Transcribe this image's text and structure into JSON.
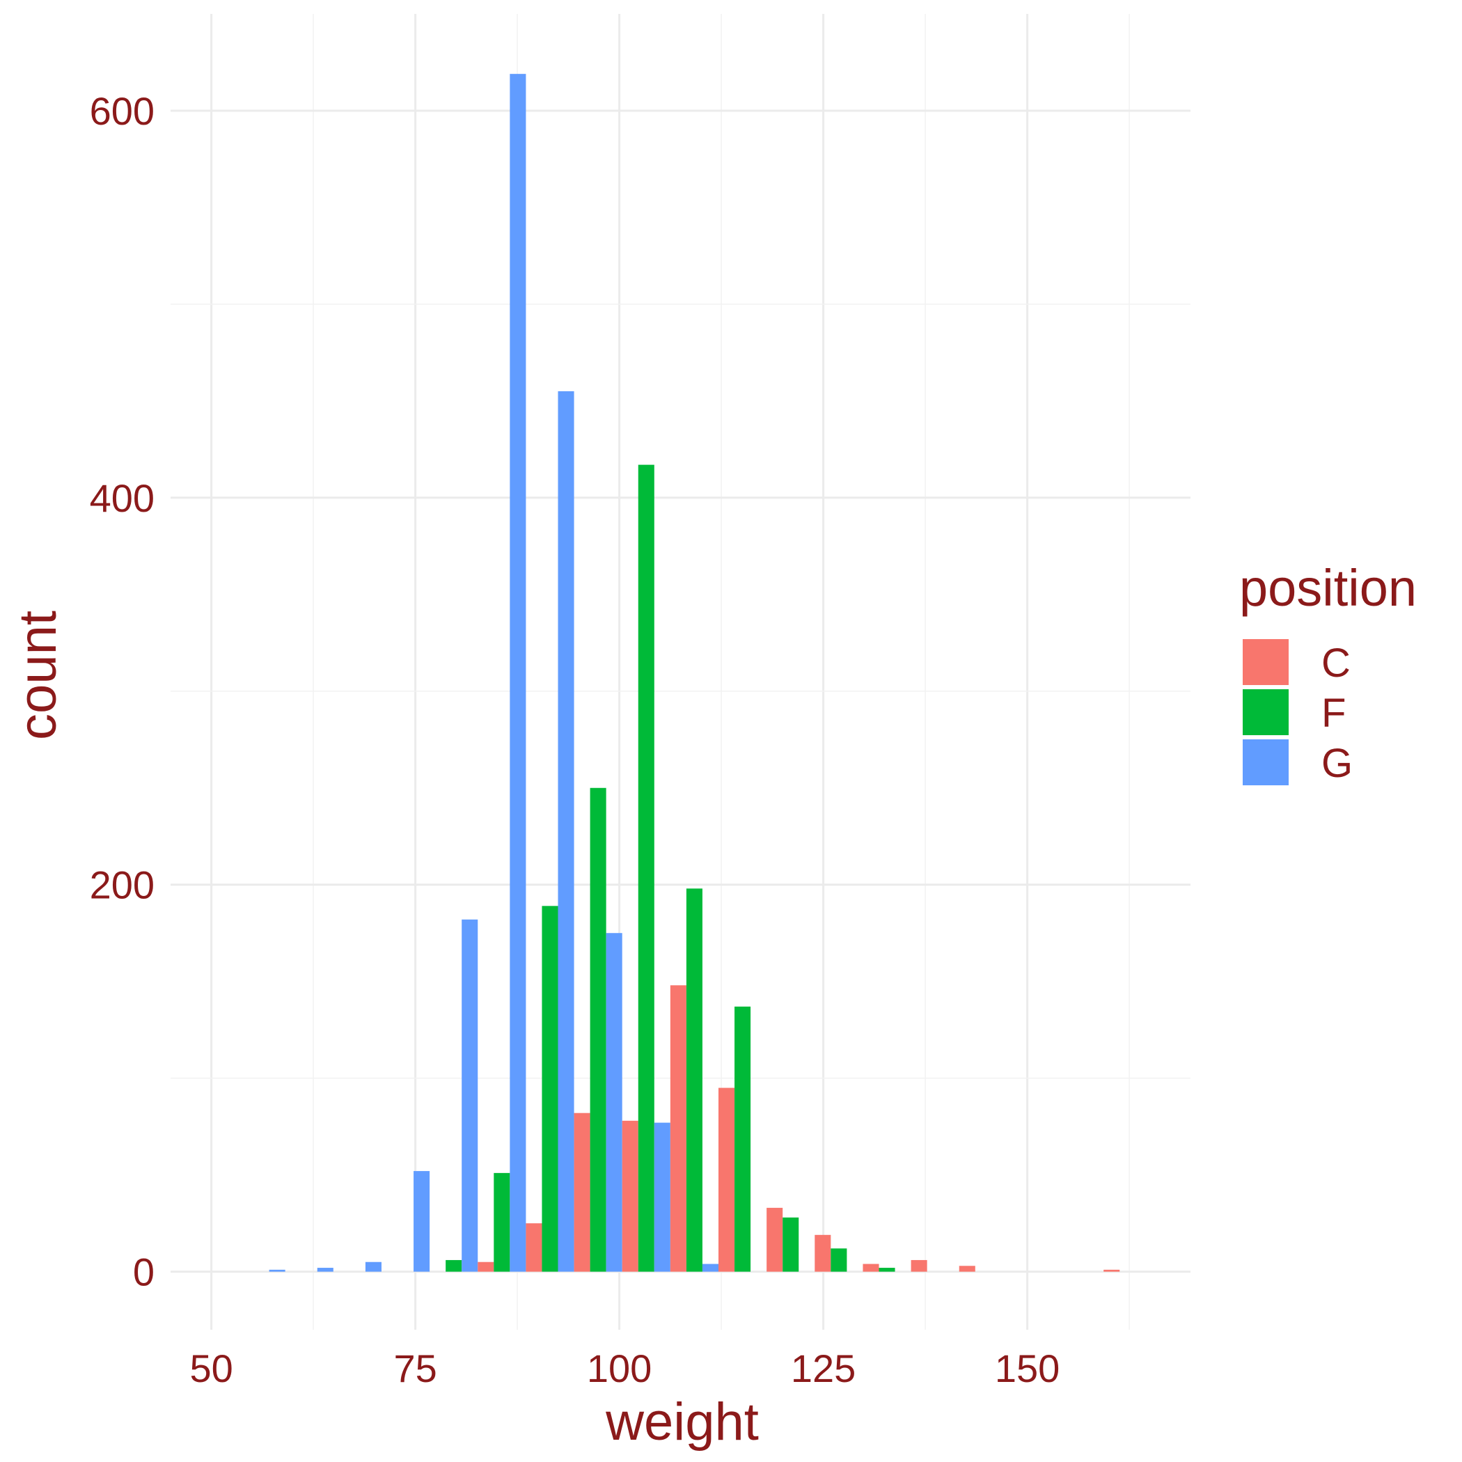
{
  "chart_data": {
    "type": "bar",
    "xlabel": "weight",
    "ylabel": "count",
    "xlim": [
      45,
      170
    ],
    "ylim": [
      -30,
      650
    ],
    "x_ticks": [
      50,
      75,
      100,
      125,
      150
    ],
    "x_tick_labels": [
      "50",
      "75",
      "100",
      "125",
      "150"
    ],
    "y_ticks": [
      0,
      200,
      400,
      600
    ],
    "y_tick_labels": [
      "0",
      "200",
      "400",
      "600"
    ],
    "grid": true,
    "legend": {
      "title": "position",
      "placement": "right",
      "entries": [
        "C",
        "F",
        "G"
      ]
    },
    "bin_width": 5.9,
    "x": [
      56.1,
      62,
      67.9,
      73.8,
      79.7,
      85.6,
      91.5,
      97.4,
      103.3,
      109.2,
      115.1,
      121,
      126.9,
      132.8,
      138.7,
      144.6,
      150.5,
      156.4,
      162.3
    ],
    "series": [
      {
        "name": "C",
        "color": "#F8766D",
        "values": [
          0,
          0,
          0,
          0,
          0,
          5,
          25,
          82,
          78,
          148,
          95,
          33,
          19,
          4,
          6,
          3,
          0,
          0,
          1
        ]
      },
      {
        "name": "F",
        "color": "#00BA38",
        "values": [
          0,
          0,
          0,
          0,
          6,
          51,
          189,
          250,
          417,
          198,
          137,
          28,
          12,
          2,
          0,
          0,
          0,
          0,
          0
        ]
      },
      {
        "name": "G",
        "color": "#619CFF",
        "values": [
          1,
          2,
          5,
          52,
          182,
          619,
          455,
          175,
          77,
          4,
          0,
          0,
          0,
          0,
          0,
          0,
          0,
          0,
          0
        ]
      }
    ]
  }
}
